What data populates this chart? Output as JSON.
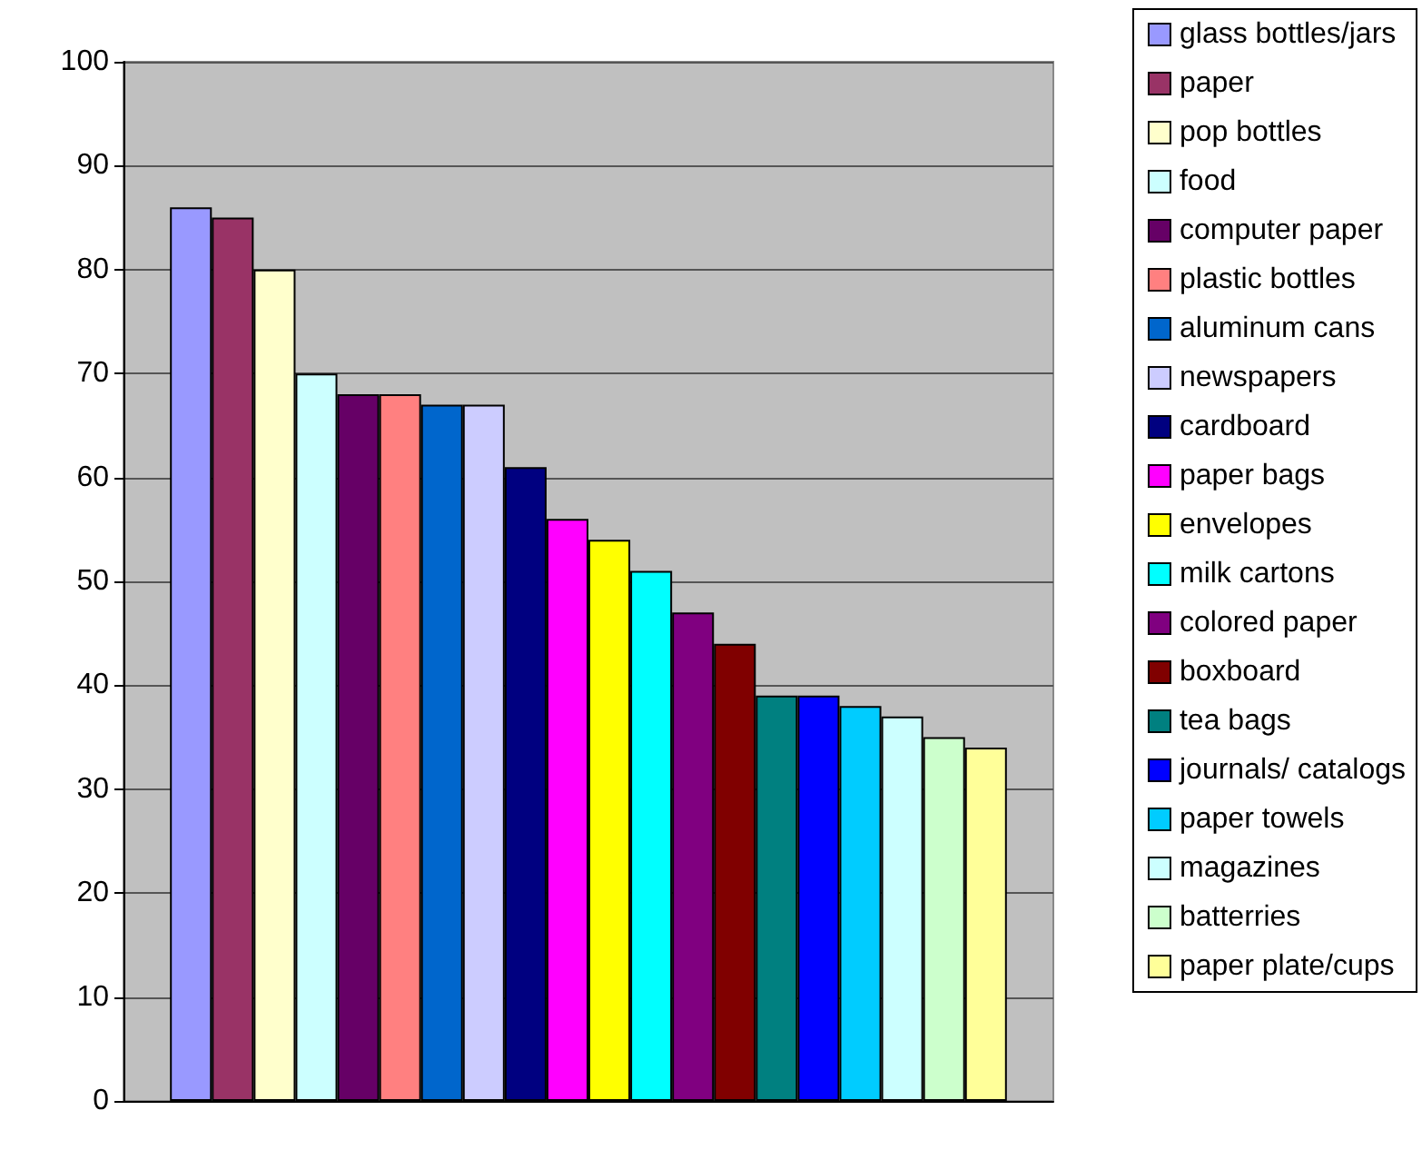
{
  "chart_data": {
    "type": "bar",
    "categories": [
      null
    ],
    "ylim": [
      0,
      100
    ],
    "yticks": [
      0,
      10,
      20,
      30,
      40,
      50,
      60,
      70,
      80,
      90,
      100
    ],
    "grid": "y",
    "legend": "right",
    "series": [
      {
        "name": "glass bottles/jars",
        "color": "#9999ff",
        "values": [
          86
        ]
      },
      {
        "name": "paper",
        "color": "#993366",
        "values": [
          85
        ]
      },
      {
        "name": "pop bottles",
        "color": "#ffffcc",
        "values": [
          80
        ]
      },
      {
        "name": "food",
        "color": "#ccffff",
        "values": [
          70
        ]
      },
      {
        "name": "computer paper",
        "color": "#660066",
        "values": [
          68
        ]
      },
      {
        "name": "plastic bottles",
        "color": "#ff8080",
        "values": [
          68
        ]
      },
      {
        "name": "aluminum cans",
        "color": "#0066cc",
        "values": [
          67
        ]
      },
      {
        "name": "newspapers",
        "color": "#ccccff",
        "values": [
          67
        ]
      },
      {
        "name": "cardboard",
        "color": "#000080",
        "values": [
          61
        ]
      },
      {
        "name": "paper bags",
        "color": "#ff00ff",
        "values": [
          56
        ]
      },
      {
        "name": "envelopes",
        "color": "#ffff00",
        "values": [
          54
        ]
      },
      {
        "name": "milk cartons",
        "color": "#00ffff",
        "values": [
          51
        ]
      },
      {
        "name": "colored paper",
        "color": "#800080",
        "values": [
          47
        ]
      },
      {
        "name": "boxboard",
        "color": "#800000",
        "values": [
          44
        ]
      },
      {
        "name": "tea bags",
        "color": "#008080",
        "values": [
          39
        ]
      },
      {
        "name": "journals/ catalogs",
        "color": "#0000ff",
        "values": [
          39
        ]
      },
      {
        "name": "paper towels",
        "color": "#00ccff",
        "values": [
          38
        ]
      },
      {
        "name": "magazines",
        "color": "#ccffff",
        "values": [
          37
        ]
      },
      {
        "name": "batterries",
        "color": "#ccffcc",
        "values": [
          35
        ]
      },
      {
        "name": "paper plate/cups",
        "color": "#ffff99",
        "values": [
          34
        ]
      }
    ]
  }
}
